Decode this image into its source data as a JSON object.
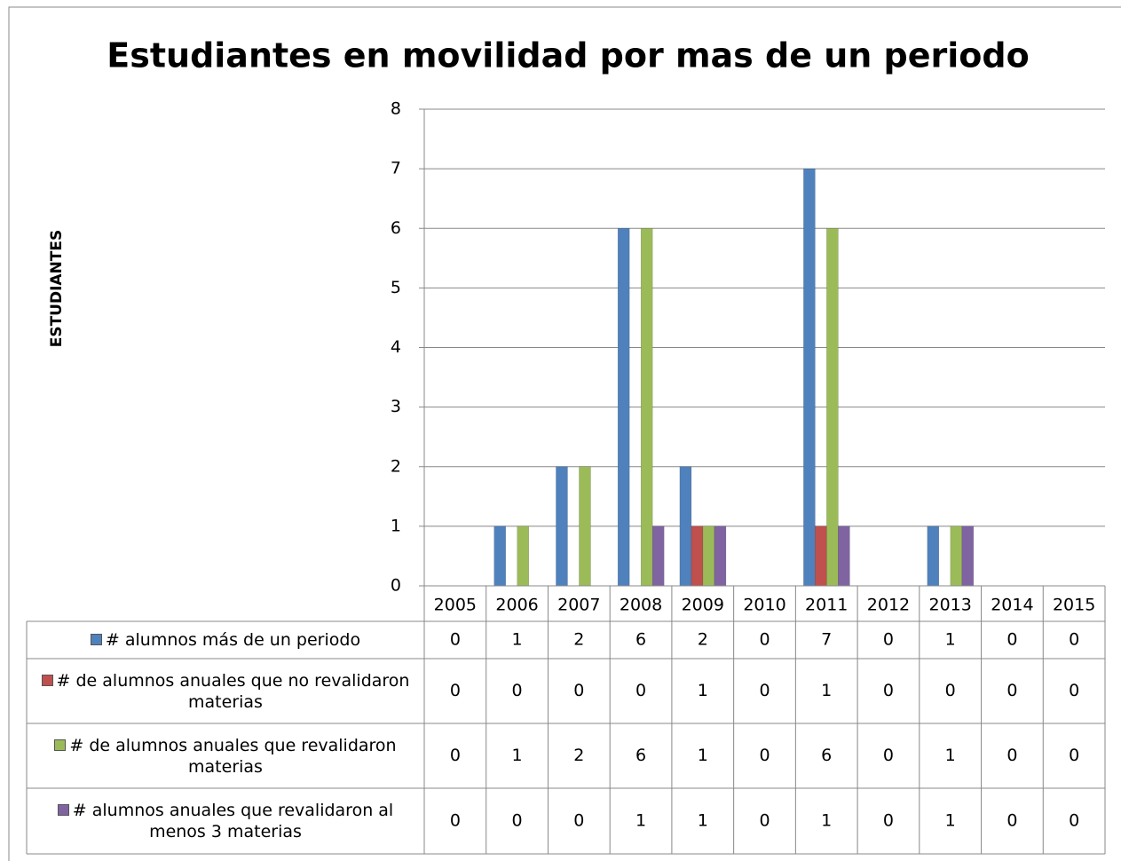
{
  "chart_data": {
    "type": "bar",
    "title": "Estudiantes en movilidad por mas de un periodo",
    "y_label": "ESTUDIANTES",
    "categories": [
      "2005",
      "2006",
      "2007",
      "2008",
      "2009",
      "2010",
      "2011",
      "2012",
      "2013",
      "2014",
      "2015"
    ],
    "series": [
      {
        "name": "# alumnos más de un periodo",
        "color": "#4f81bd",
        "values": [
          0,
          1,
          2,
          6,
          2,
          0,
          7,
          0,
          1,
          0,
          0
        ]
      },
      {
        "name": "# de alumnos anuales que no revalidaron materias",
        "color": "#c0504d",
        "values": [
          0,
          0,
          0,
          0,
          1,
          0,
          1,
          0,
          0,
          0,
          0
        ]
      },
      {
        "name": "# de alumnos anuales que revalidaron materias",
        "color": "#9bbb59",
        "values": [
          0,
          1,
          2,
          6,
          1,
          0,
          6,
          0,
          1,
          0,
          0
        ]
      },
      {
        "name": "# alumnos anuales que revalidaron al menos 3 materias",
        "color": "#8064a2",
        "values": [
          0,
          0,
          0,
          1,
          1,
          0,
          1,
          0,
          1,
          0,
          0
        ]
      }
    ],
    "ylim": [
      0,
      8
    ],
    "yticks": [
      0,
      1,
      2,
      3,
      4,
      5,
      6,
      7,
      8
    ],
    "grid": true,
    "data_table": true
  }
}
